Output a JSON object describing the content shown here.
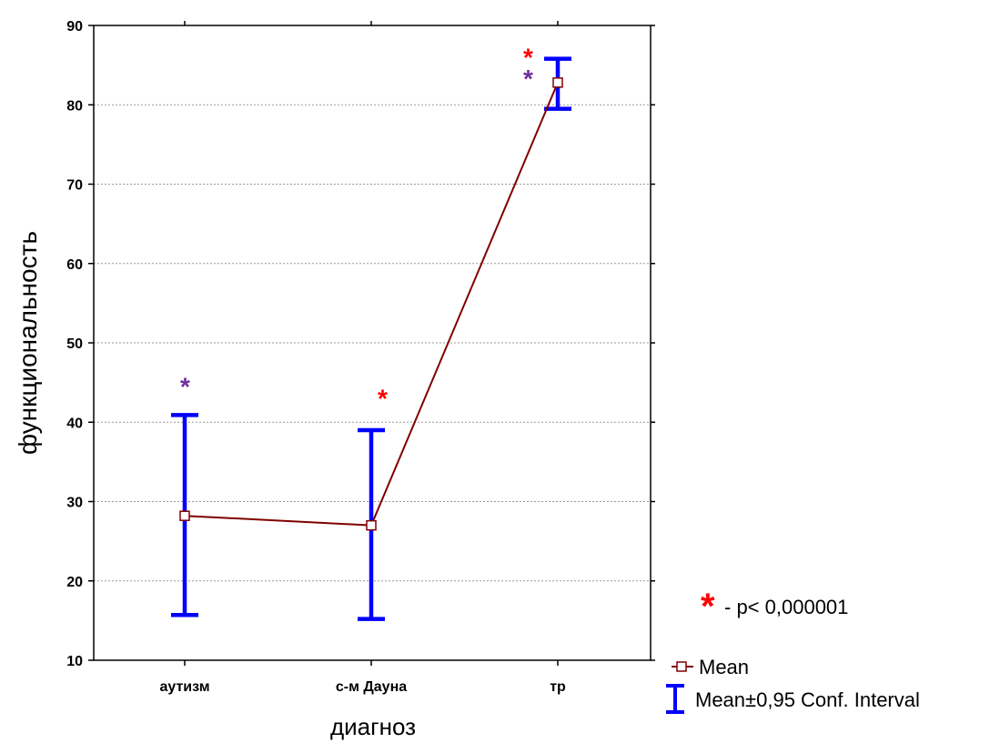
{
  "chart_data": {
    "type": "line",
    "xlabel": "диагноз",
    "ylabel": "функциональность",
    "categories": [
      "аутизм",
      "с-м Дауна",
      "тр"
    ],
    "ylim": [
      10,
      90
    ],
    "yticks": [
      10,
      20,
      30,
      40,
      50,
      60,
      70,
      80,
      90
    ],
    "grid": true,
    "series": [
      {
        "name": "Mean",
        "values": [
          28.2,
          27.0,
          82.8
        ],
        "ci_lower": [
          15.7,
          15.2,
          79.5
        ],
        "ci_upper": [
          40.9,
          39.0,
          85.8
        ]
      }
    ],
    "annotations": [
      {
        "category": "аутизм",
        "text": "*",
        "color": "#7030a0",
        "y": 45
      },
      {
        "category": "с-м Дауна",
        "text": "*",
        "color": "#ff0000",
        "y": 43.5
      },
      {
        "category": "тр",
        "text": "*",
        "color": "#ff0000",
        "y": 86.5
      },
      {
        "category": "тр",
        "text": "*",
        "color": "#7030a0",
        "y": 83.8
      }
    ],
    "significance_note": {
      "star": "*",
      "text": "- p< 0,000001",
      "star_color": "#ff0000"
    },
    "legend": {
      "placement": "bottom-right",
      "entries": [
        "Mean",
        "Mean±0,95 Conf. Interval"
      ]
    },
    "colors": {
      "mean_line": "#800000",
      "ci": "#0000ff",
      "grid": "#999999"
    }
  }
}
